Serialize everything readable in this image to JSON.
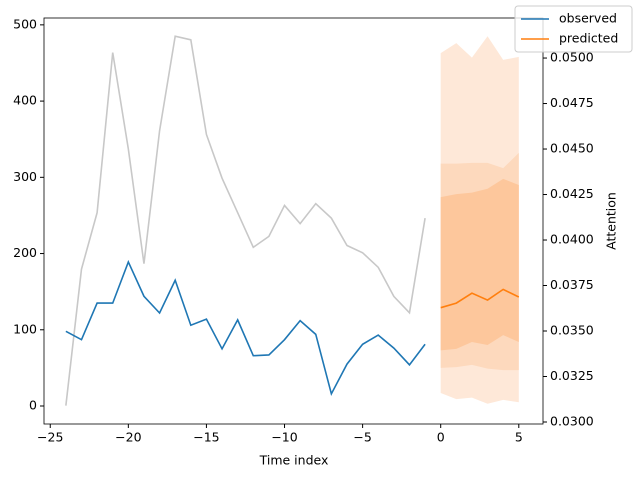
{
  "chart_data": {
    "type": "line",
    "xlabel": "Time index",
    "y2label": "Attention",
    "xlim": [
      -25.4,
      6.55
    ],
    "ylim": [
      -23.6,
      509
    ],
    "y2lim": [
      0.02989,
      0.0522
    ],
    "xticks": [
      {
        "value": -25,
        "label": "−25"
      },
      {
        "value": -20,
        "label": "−20"
      },
      {
        "value": -15,
        "label": "−15"
      },
      {
        "value": -10,
        "label": "−10"
      },
      {
        "value": -5,
        "label": "−5"
      },
      0,
      5
    ],
    "yticks": [
      0,
      100,
      200,
      300,
      400,
      500
    ],
    "y2ticks": [
      {
        "value": 0.03,
        "label": "0.0300"
      },
      {
        "value": 0.0325,
        "label": "0.0325"
      },
      {
        "value": 0.035,
        "label": "0.0350"
      },
      {
        "value": 0.0375,
        "label": "0.0375"
      },
      {
        "value": 0.04,
        "label": "0.0400"
      },
      {
        "value": 0.0425,
        "label": "0.0425"
      },
      {
        "value": 0.045,
        "label": "0.0450"
      },
      {
        "value": 0.0475,
        "label": "0.0475"
      },
      {
        "value": 0.05,
        "label": "0.0500"
      }
    ],
    "bands": [
      {
        "color": "#fee8d8",
        "x": [
          0,
          1,
          2,
          3,
          4,
          5
        ],
        "upper": [
          463,
          476,
          457,
          485,
          454,
          458
        ],
        "lower": [
          17,
          9,
          11,
          3,
          8,
          5
        ]
      },
      {
        "color": "#fdd9bd",
        "x": [
          0,
          1,
          2,
          3,
          4,
          5
        ],
        "upper": [
          318,
          318,
          319,
          319,
          312,
          332
        ],
        "lower": [
          50,
          51,
          54,
          49,
          47,
          47
        ]
      },
      {
        "color": "#fdc79c",
        "x": [
          0,
          1,
          2,
          3,
          4,
          5
        ],
        "upper": [
          274,
          278,
          280,
          285,
          298,
          290
        ],
        "lower": [
          73,
          75,
          84,
          80,
          93,
          84
        ]
      }
    ],
    "attention": {
      "color": "#c8c8c8",
      "axis": "y2",
      "x": [
        -24,
        -23,
        -22,
        -21,
        -20,
        -19,
        -18,
        -17,
        -16,
        -15,
        -14,
        -13,
        -12,
        -11,
        -10,
        -9,
        -8,
        -7,
        -6,
        -5,
        -4,
        -3,
        -2,
        -1
      ],
      "values": [
        0.0309,
        0.0384,
        0.0415,
        0.0503,
        0.045,
        0.0387,
        0.046,
        0.0512,
        0.051,
        0.0458,
        0.0434,
        0.0415,
        0.0396,
        0.0402,
        0.0419,
        0.0409,
        0.042,
        0.0412,
        0.0397,
        0.0393,
        0.0385,
        0.0369,
        0.036,
        0.0412
      ]
    },
    "series": [
      {
        "name": "observed",
        "color": "#1f77b4",
        "x": [
          -24,
          -23,
          -22,
          -21,
          -20,
          -19,
          -18,
          -17,
          -16,
          -15,
          -14,
          -13,
          -12,
          -11,
          -10,
          -9,
          -8,
          -7,
          -6,
          -5,
          -4,
          -3,
          -2,
          -1
        ],
        "values": [
          98,
          87,
          135,
          135,
          189,
          144,
          122,
          165,
          106,
          114,
          75,
          113,
          66,
          67,
          87,
          112,
          94,
          16,
          55,
          81,
          93,
          76,
          54,
          81
        ]
      },
      {
        "name": "predicted",
        "color": "#ff7f0e",
        "x": [
          0,
          1,
          2,
          3,
          4,
          5
        ],
        "values": [
          129,
          135,
          148,
          139,
          153,
          143
        ]
      }
    ]
  }
}
